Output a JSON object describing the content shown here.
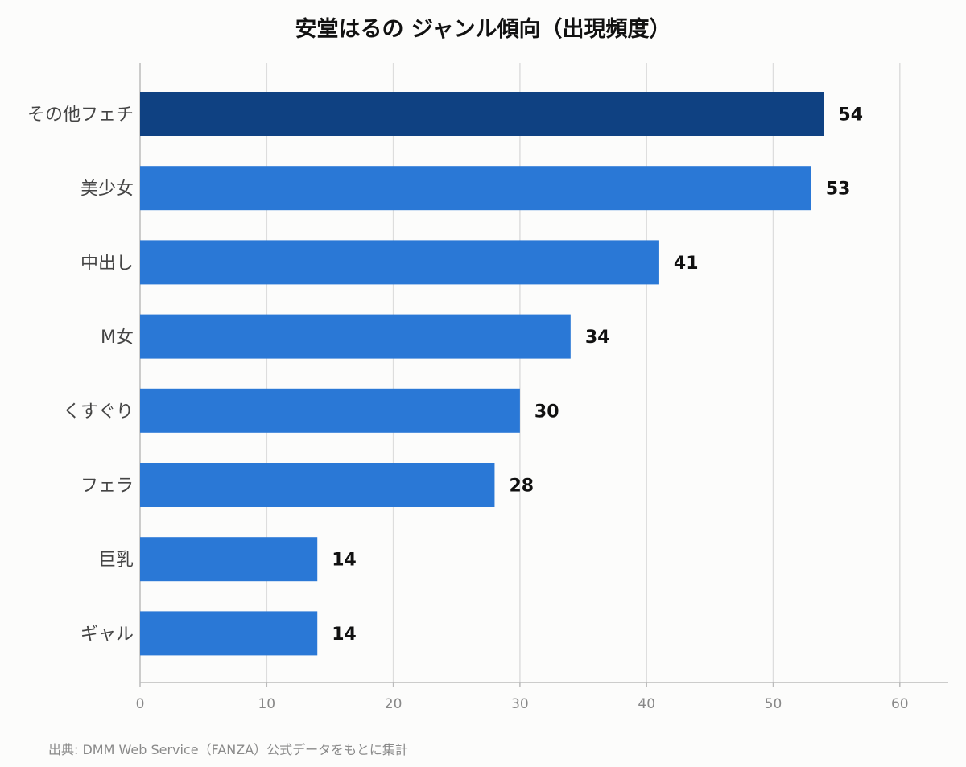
{
  "chart_data": {
    "type": "bar",
    "orientation": "horizontal",
    "title": "安堂はるの ジャンル傾向（出現頻度）",
    "categories": [
      "その他フェチ",
      "美少女",
      "中出し",
      "M女",
      "くすぐり",
      "フェラ",
      "巨乳",
      "ギャル"
    ],
    "values": [
      54,
      53,
      41,
      34,
      30,
      28,
      14,
      14
    ],
    "xlabel": "",
    "ylabel": "",
    "xlim": [
      0,
      60
    ],
    "xticks": [
      0,
      10,
      20,
      30,
      40,
      50,
      60
    ],
    "grid": true,
    "data_labels": true,
    "colors": {
      "highlight": "#0f4182",
      "bar": "#2a78d6",
      "grid": "#dddddd",
      "axis": "#bbbbbb",
      "category_label": "#444444",
      "tick_label": "#888888",
      "value_label": "#111111"
    }
  },
  "footer": {
    "source": "出典: DMM Web Service（FANZA）公式データをもとに集計"
  }
}
